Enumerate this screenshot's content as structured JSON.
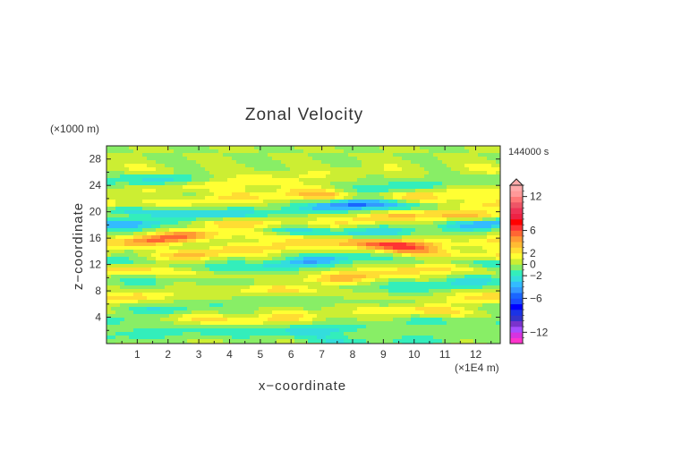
{
  "chart_data": {
    "type": "heatmap",
    "title": "Zonal Velocity",
    "xlabel": "x−coordinate",
    "ylabel": "z−coordinate",
    "x_unit": "(×1E4 m)",
    "y_unit": "(×1000 m)",
    "time_label": "144000 s",
    "xlim": [
      0,
      12.8
    ],
    "ylim": [
      0,
      30
    ],
    "x_ticks": [
      "1",
      "2",
      "3",
      "4",
      "5",
      "6",
      "7",
      "8",
      "9",
      "10",
      "11",
      "12"
    ],
    "y_ticks": [
      "4",
      "8",
      "12",
      "16",
      "20",
      "24",
      "28"
    ],
    "colorbar": {
      "levels": [
        -14,
        -13,
        -12,
        -11,
        -10,
        -9,
        -8,
        -7,
        -6,
        -5,
        -4,
        -3,
        -2,
        -1,
        0,
        1,
        2,
        3,
        4,
        5,
        6,
        7,
        8,
        9,
        10,
        11,
        12,
        13,
        14
      ],
      "colors": [
        "#ff33cc",
        "#d633e0",
        "#a64dff",
        "#7a33cc",
        "#3333cc",
        "#1a33e6",
        "#0000ff",
        "#1a4dff",
        "#1a66ff",
        "#3399ff",
        "#33bbff",
        "#33dddd",
        "#33eebb",
        "#88ee66",
        "#ccee33",
        "#ffff33",
        "#ffdd33",
        "#ffbb33",
        "#ff9933",
        "#ff6633",
        "#ff3333",
        "#ff0000",
        "#ee2244",
        "#ee3355",
        "#ee5566",
        "#ff7777",
        "#ff9999",
        "#ffaaaa"
      ],
      "tick_labels": [
        "12",
        "6",
        "2",
        "0",
        "−2",
        "−6",
        "−12"
      ],
      "tick_values": [
        12,
        6,
        2,
        0,
        -2,
        -6,
        -12
      ],
      "extend_max": true
    },
    "bands": [
      {
        "z": 1.0,
        "amp": -1.5
      },
      {
        "z": 2.8,
        "amp": -2.0
      },
      {
        "z": 4.3,
        "amp": 2.5
      },
      {
        "z": 6.0,
        "amp": -1.5
      },
      {
        "z": 7.5,
        "amp": 2.5
      },
      {
        "z": 9.0,
        "amp": -2.0
      },
      {
        "z": 10.5,
        "amp": 3.0
      },
      {
        "z": 12.3,
        "amp": -3.0
      },
      {
        "z": 14.0,
        "amp": 3.0
      },
      {
        "z": 15.8,
        "amp": 4.5
      },
      {
        "z": 17.5,
        "amp": -4.0
      },
      {
        "z": 18.8,
        "amp": 4.0
      },
      {
        "z": 20.3,
        "amp": -4.5
      },
      {
        "z": 21.8,
        "amp": 3.0
      },
      {
        "z": 23.3,
        "amp": 2.0
      },
      {
        "z": 24.0,
        "amp": -2.0
      },
      {
        "z": 26.0,
        "amp": 1.0
      }
    ]
  }
}
